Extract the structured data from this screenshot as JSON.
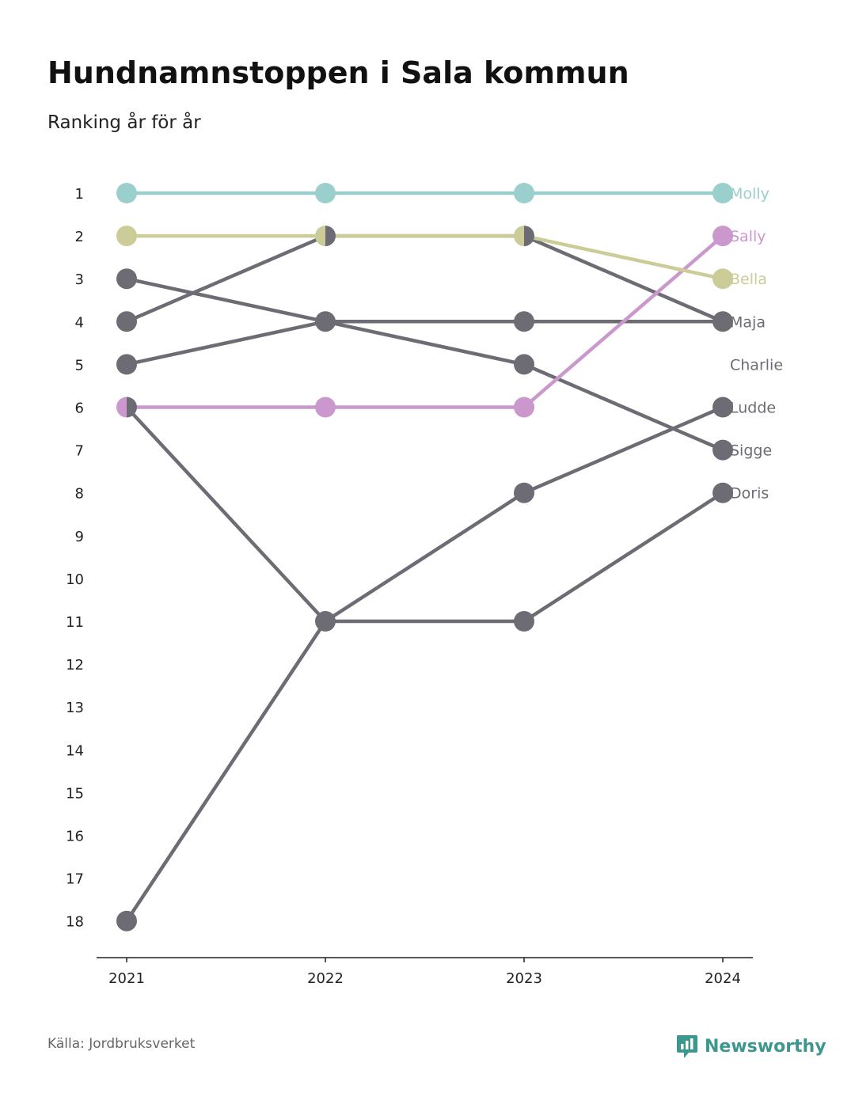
{
  "header": {
    "title": "Hundnamnstoppen i Sala kommun",
    "subtitle": "Ranking år för år"
  },
  "footer": {
    "source": "Källa: Jordbruksverket",
    "brand": "Newsworthy"
  },
  "colors": {
    "molly": "#9bcfcd",
    "sally": "#cb98cd",
    "bella": "#cccc98",
    "grey": "#6d6c74",
    "axis": "#222222",
    "brand": "#3c978f"
  },
  "chart_data": {
    "type": "line",
    "x": [
      "2021",
      "2022",
      "2023",
      "2024"
    ],
    "y_ticks": [
      "1",
      "2",
      "3",
      "4",
      "5",
      "6",
      "7",
      "8",
      "9",
      "10",
      "11",
      "12",
      "13",
      "14",
      "15",
      "16",
      "17",
      "18"
    ],
    "ylim": [
      1,
      18
    ],
    "y_reversed": true,
    "ylabel": "",
    "xlabel": "",
    "legend": "direct-labels-right",
    "grid": false,
    "series": [
      {
        "name": "Molly",
        "values": [
          1,
          1,
          1,
          1
        ],
        "color": "#9bcfcd"
      },
      {
        "name": "Sally",
        "values": [
          6,
          6,
          6,
          2
        ],
        "color": "#cb98cd"
      },
      {
        "name": "Bella",
        "values": [
          2,
          2,
          2,
          3
        ],
        "color": "#cccc98"
      },
      {
        "name": "Maja",
        "values": [
          4,
          2,
          2,
          4
        ],
        "color": "#6d6c74"
      },
      {
        "name": "Charlie",
        "values": [
          5,
          4,
          4,
          4
        ],
        "color": "#6d6c74"
      },
      {
        "name": "Ludde",
        "values": [
          18,
          11,
          8,
          6
        ],
        "color": "#6d6c74"
      },
      {
        "name": "Sigge",
        "values": [
          3,
          4,
          5,
          7
        ],
        "color": "#6d6c74"
      },
      {
        "name": "Doris",
        "values": [
          6,
          11,
          11,
          8
        ],
        "color": "#6d6c74"
      }
    ],
    "label_ranks": {
      "Molly": 1,
      "Sally": 2,
      "Bella": 3,
      "Maja": 4,
      "Charlie": 5,
      "Ludde": 6,
      "Sigge": 7,
      "Doris": 8
    }
  }
}
